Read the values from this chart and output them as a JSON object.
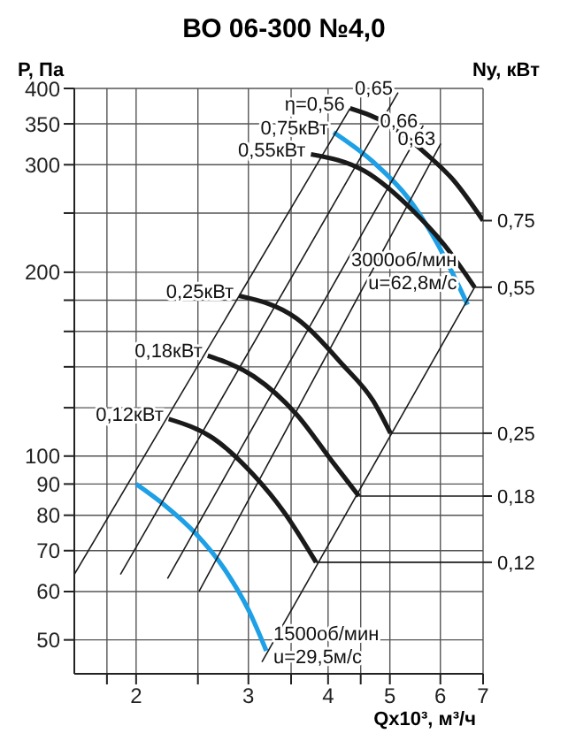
{
  "chart_data": {
    "type": "line",
    "title": "ВО 06-300 №4,0",
    "xlabel": "Qx10³, м³/ч",
    "ylabel": "P, Па",
    "y2label": "Ny, кВт",
    "log": "xy",
    "xlim": [
      1.6,
      7
    ],
    "xticks": [
      {
        "value": 1.8,
        "label": null
      },
      2,
      {
        "value": 2.5,
        "label": null
      },
      3,
      {
        "value": 3.5,
        "label": null
      },
      4,
      {
        "value": 4.5,
        "label": null
      },
      5,
      6,
      7
    ],
    "ylim": [
      44,
      400
    ],
    "yticks": [
      50,
      60,
      70,
      80,
      90,
      100,
      {
        "value": 120,
        "label": null
      },
      {
        "value": 140,
        "label": null
      },
      {
        "value": 160,
        "label": null
      },
      {
        "value": 180,
        "label": null
      },
      200,
      {
        "value": 250,
        "label": null
      },
      300,
      350,
      400
    ],
    "grid": true,
    "series": [
      {
        "color": "#1a1a1a",
        "x": [
          4.33,
          5.01,
          5.71,
          6.29,
          7.0
        ],
        "values": [
          371,
          348,
          312,
          283,
          243
        ]
      },
      {
        "name": "3000об/мин u=62,8м/с",
        "color": "#1ea0e6",
        "x": [
          4.08,
          4.71,
          5.35,
          5.89,
          6.62
        ],
        "values": [
          339,
          303,
          264,
          226,
          177
        ]
      },
      {
        "color": "#1a1a1a",
        "x": [
          3.76,
          4.56,
          5.46,
          6.08,
          6.79
        ],
        "values": [
          312,
          293,
          251,
          222,
          189
        ]
      },
      {
        "color": "#1a1a1a",
        "x": [
          2.9,
          3.57,
          4.22,
          4.71,
          5.01
        ],
        "values": [
          183,
          168,
          141,
          123,
          109
        ]
      },
      {
        "color": "#1a1a1a",
        "x": [
          2.59,
          3.06,
          3.57,
          4.06,
          4.47
        ],
        "values": [
          146,
          135,
          117,
          98,
          86
        ]
      },
      {
        "color": "#1a1a1a",
        "x": [
          2.25,
          2.64,
          3.06,
          3.41,
          3.83
        ],
        "values": [
          115,
          107,
          93,
          81,
          67
        ]
      },
      {
        "name": "1500об/мин u=29,5м/с",
        "color": "#1ea0e6",
        "x": [
          2.0,
          2.22,
          2.47,
          2.76,
          3.0,
          3.2
        ],
        "values": [
          90,
          83,
          75,
          65,
          56,
          48
        ]
      },
      {
        "color": "#1a1a1a",
        "x": [
          1.6,
          4.33
        ],
        "values": [
          64,
          371
        ]
      },
      {
        "color": "#1a1a1a",
        "x": [
          1.89,
          5.15
        ],
        "values": [
          64,
          394
        ]
      },
      {
        "color": "#1a1a1a",
        "x": [
          2.24,
          5.64
        ],
        "values": [
          63,
          348
        ]
      },
      {
        "color": "#1a1a1a",
        "x": [
          2.51,
          6.01
        ],
        "values": [
          60,
          325
        ]
      },
      {
        "color": "#1a1a1a",
        "x": [
          3.15,
          6.79
        ],
        "values": [
          46,
          189
        ]
      },
      {
        "color": "#1a1a1a",
        "x": [
          6.79,
          7.0
        ],
        "values": [
          189,
          189
        ]
      },
      {
        "color": "#1a1a1a",
        "x": [
          5.01,
          7.0
        ],
        "values": [
          109,
          109
        ]
      },
      {
        "color": "#1a1a1a",
        "x": [
          4.47,
          7.0
        ],
        "values": [
          86,
          86
        ]
      },
      {
        "color": "#1a1a1a",
        "x": [
          3.83,
          7.0
        ],
        "values": [
          67,
          67
        ]
      }
    ],
    "annotations": [
      {
        "text": "η=0,56",
        "x": 4.33,
        "y": 371
      },
      {
        "text": "0,65",
        "x": 5.15,
        "y": 394
      },
      {
        "text": "0,66",
        "x": 5.64,
        "y": 348
      },
      {
        "text": "0,63",
        "x": 6.01,
        "y": 325
      },
      {
        "text": "0,75кВт",
        "x": 4.08,
        "y": 339
      },
      {
        "text": "0,55кВт",
        "x": 3.76,
        "y": 312
      },
      {
        "text": "0,25кВт",
        "x": 2.9,
        "y": 183
      },
      {
        "text": "0,18кВт",
        "x": 2.59,
        "y": 146
      },
      {
        "text": "0,12кВт",
        "x": 2.25,
        "y": 115
      },
      {
        "text": "0,75",
        "x": 7.0,
        "y": 243
      },
      {
        "text": "0,55",
        "x": 7.0,
        "y": 189
      },
      {
        "text": "0,25",
        "x": 7.0,
        "y": 109
      },
      {
        "text": "0,18",
        "x": 7.0,
        "y": 86
      },
      {
        "text": "0,12",
        "x": 7.0,
        "y": 67
      }
    ]
  }
}
